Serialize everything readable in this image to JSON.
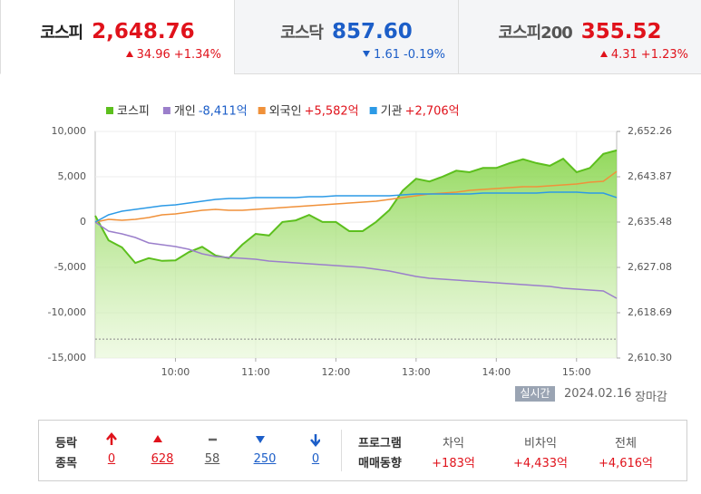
{
  "tabs": [
    {
      "name": "코스피",
      "value": "2,648.76",
      "change": "34.96",
      "rate": "+1.34%",
      "direction": "up",
      "active": true
    },
    {
      "name": "코스닥",
      "value": "857.60",
      "change": "1.61",
      "rate": "-0.19%",
      "direction": "down",
      "active": false
    },
    {
      "name": "코스피200",
      "value": "355.52",
      "change": "4.31",
      "rate": "+1.23%",
      "direction": "up",
      "active": false
    }
  ],
  "chart_data": {
    "type": "line",
    "x": [
      "09:00",
      "09:10",
      "09:20",
      "09:30",
      "09:40",
      "09:50",
      "10:00",
      "10:10",
      "10:20",
      "10:30",
      "10:40",
      "10:50",
      "11:00",
      "11:10",
      "11:20",
      "11:30",
      "11:40",
      "11:50",
      "12:00",
      "12:10",
      "12:20",
      "12:30",
      "12:40",
      "12:50",
      "13:00",
      "13:10",
      "13:20",
      "13:30",
      "13:40",
      "13:50",
      "14:00",
      "14:10",
      "14:20",
      "14:30",
      "14:40",
      "14:50",
      "15:00",
      "15:10",
      "15:20",
      "15:30"
    ],
    "xlim": [
      "09:00",
      "15:30"
    ],
    "xticks": [
      "10:00",
      "11:00",
      "12:00",
      "13:00",
      "14:00",
      "15:00"
    ],
    "ylim": [
      -15000,
      10000
    ],
    "yticks": [
      {
        "value": 10000,
        "label": "10,000"
      },
      {
        "value": 5000,
        "label": "5,000"
      },
      0,
      {
        "value": -5000,
        "label": "-5,000"
      },
      {
        "value": -10000,
        "label": "-10,000"
      },
      {
        "value": -15000,
        "label": "-15,000"
      }
    ],
    "y2lim": [
      2610.3,
      2652.26
    ],
    "y2ticks": [
      {
        "value": 2652.26,
        "label": "2,652.26"
      },
      {
        "value": 2643.87,
        "label": "2,643.87"
      },
      {
        "value": 2635.48,
        "label": "2,635.48"
      },
      {
        "value": 2627.08,
        "label": "2,627.08"
      },
      {
        "value": 2618.69,
        "label": "2,618.69"
      },
      {
        "value": 2610.3,
        "label": "2,610.30"
      }
    ],
    "grid": true,
    "reference_line": {
      "value": 2613.8,
      "axis": "y2"
    },
    "series": [
      {
        "name": "코스피",
        "color": "#5cbf1d",
        "axis": "y2",
        "area": true,
        "values": [
          2636.65,
          2632.1,
          2630.8,
          2627.9,
          2628.8,
          2628.3,
          2628.4,
          2629.9,
          2630.9,
          2629.3,
          2628.8,
          2631.3,
          2633.3,
          2633.0,
          2635.5,
          2635.8,
          2636.8,
          2635.5,
          2635.5,
          2633.8,
          2633.8,
          2635.5,
          2637.7,
          2641.3,
          2643.5,
          2643.0,
          2643.9,
          2645.0,
          2644.7,
          2645.5,
          2645.5,
          2646.4,
          2647.1,
          2646.4,
          2645.9,
          2647.2,
          2644.7,
          2645.5,
          2648.1,
          2648.76
        ]
      },
      {
        "name": "개인",
        "summary": "-8,411억",
        "color": "#9b7fcb",
        "axis": "y",
        "values": [
          0,
          -1000,
          -1300,
          -1700,
          -2300,
          -2500,
          -2700,
          -3000,
          -3500,
          -3800,
          -3900,
          -4000,
          -4100,
          -4300,
          -4400,
          -4500,
          -4600,
          -4700,
          -4800,
          -4900,
          -5000,
          -5200,
          -5400,
          -5700,
          -6000,
          -6200,
          -6300,
          -6400,
          -6500,
          -6600,
          -6700,
          -6800,
          -6900,
          -7000,
          -7100,
          -7300,
          -7400,
          -7500,
          -7600,
          -8411
        ]
      },
      {
        "name": "외국인",
        "summary": "+5,582억",
        "color": "#f0913a",
        "axis": "y",
        "values": [
          0,
          300,
          200,
          300,
          500,
          800,
          900,
          1100,
          1300,
          1400,
          1300,
          1300,
          1400,
          1500,
          1600,
          1700,
          1800,
          1900,
          2000,
          2100,
          2200,
          2300,
          2500,
          2700,
          2900,
          3100,
          3200,
          3300,
          3500,
          3600,
          3700,
          3800,
          3900,
          3900,
          4000,
          4100,
          4200,
          4400,
          4500,
          5582
        ]
      },
      {
        "name": "기관",
        "summary": "+2,706억",
        "color": "#2c9ae6",
        "axis": "y",
        "values": [
          0,
          800,
          1200,
          1400,
          1600,
          1800,
          1900,
          2100,
          2300,
          2500,
          2600,
          2600,
          2700,
          2700,
          2700,
          2700,
          2800,
          2800,
          2900,
          2900,
          2900,
          2900,
          2900,
          3000,
          3100,
          3100,
          3100,
          3100,
          3100,
          3200,
          3200,
          3200,
          3200,
          3200,
          3300,
          3300,
          3300,
          3200,
          3200,
          2706
        ]
      }
    ]
  },
  "status": {
    "badge": "실시간",
    "date": "2024.02.16",
    "state": "장마감"
  },
  "breadth": {
    "label": [
      "등락",
      "종목"
    ],
    "counts": [
      0,
      628,
      58,
      250,
      0
    ]
  },
  "program": {
    "label": [
      "프로그램",
      "매매동향"
    ],
    "columns": [
      {
        "name": "차익",
        "value": "+183억"
      },
      {
        "name": "비차익",
        "value": "+4,433억"
      },
      {
        "name": "전체",
        "value": "+4,616억"
      }
    ]
  }
}
